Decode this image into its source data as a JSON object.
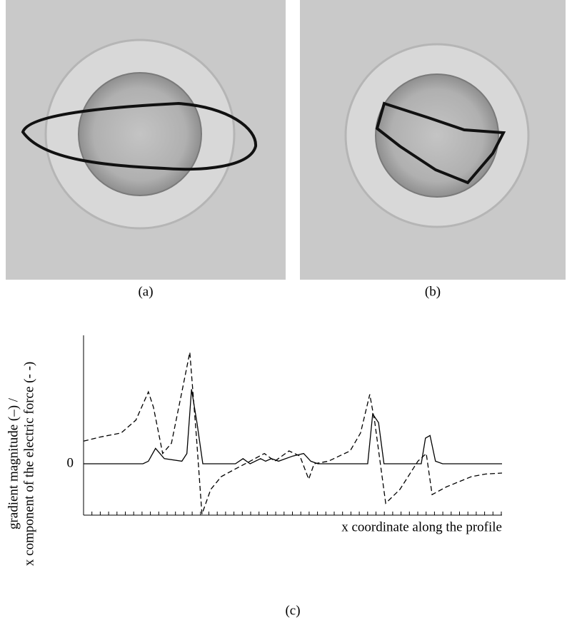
{
  "captions": [
    "(a)",
    "(b)"
  ],
  "chart_data": {
    "type": "line",
    "caption": "(c)",
    "ylabel": [
      "gradient magnitude (–) /",
      "x component of the electric force (- -)"
    ],
    "xlabel": "x coordinate along the profile",
    "xlim": [
      0,
      100
    ],
    "ylim": [
      -1,
      2.5
    ],
    "yticks": [
      0
    ],
    "series": [
      {
        "color": "#000",
        "dash": false,
        "x": [
          0,
          14.2,
          15.5,
          17.2,
          19.3,
          23.5,
          24.7,
          25.8,
          27.1,
          28.5,
          36.3,
          38.1,
          39.8,
          42.3,
          43.5,
          44.9,
          46.6,
          50,
          52.6,
          54.3,
          56,
          67.9,
          69.1,
          70.5,
          71.8,
          80.7,
          81.7,
          82.8,
          84.1,
          85.8,
          100
        ],
        "values": [
          0,
          0,
          0.05,
          0.3,
          0.1,
          0.05,
          0.2,
          1.45,
          0.8,
          0,
          0,
          0.1,
          0,
          0.1,
          0.05,
          0.1,
          0.05,
          0.15,
          0.2,
          0.05,
          0,
          0,
          0.97,
          0.8,
          0,
          0,
          0.5,
          0.55,
          0.05,
          0,
          0
        ]
      },
      {
        "color": "#000",
        "dash": true,
        "x": [
          0,
          3.9,
          9,
          12.5,
          15.5,
          16.7,
          18.9,
          21,
          23.5,
          25.4,
          27,
          28.3,
          30.4,
          32.9,
          36.3,
          39.8,
          43.2,
          45.7,
          49.1,
          51.7,
          53.8,
          55.1,
          58.5,
          63.7,
          66.2,
          68.4,
          69.6,
          72.2,
          75.6,
          79.9,
          81.9,
          83.3,
          86.7,
          92.7,
          96.1,
          100
        ],
        "values": [
          0.44,
          0.52,
          0.6,
          0.85,
          1.4,
          1.1,
          0.2,
          0.4,
          1.4,
          2.17,
          0.5,
          -0.98,
          -0.5,
          -0.25,
          -0.1,
          0.05,
          0.2,
          0.05,
          0.25,
          0.15,
          -0.3,
          0,
          0.05,
          0.25,
          0.6,
          1.35,
          0.8,
          -0.77,
          -0.5,
          0.05,
          0.2,
          -0.6,
          -0.45,
          -0.25,
          -0.2,
          -0.18
        ]
      }
    ]
  }
}
